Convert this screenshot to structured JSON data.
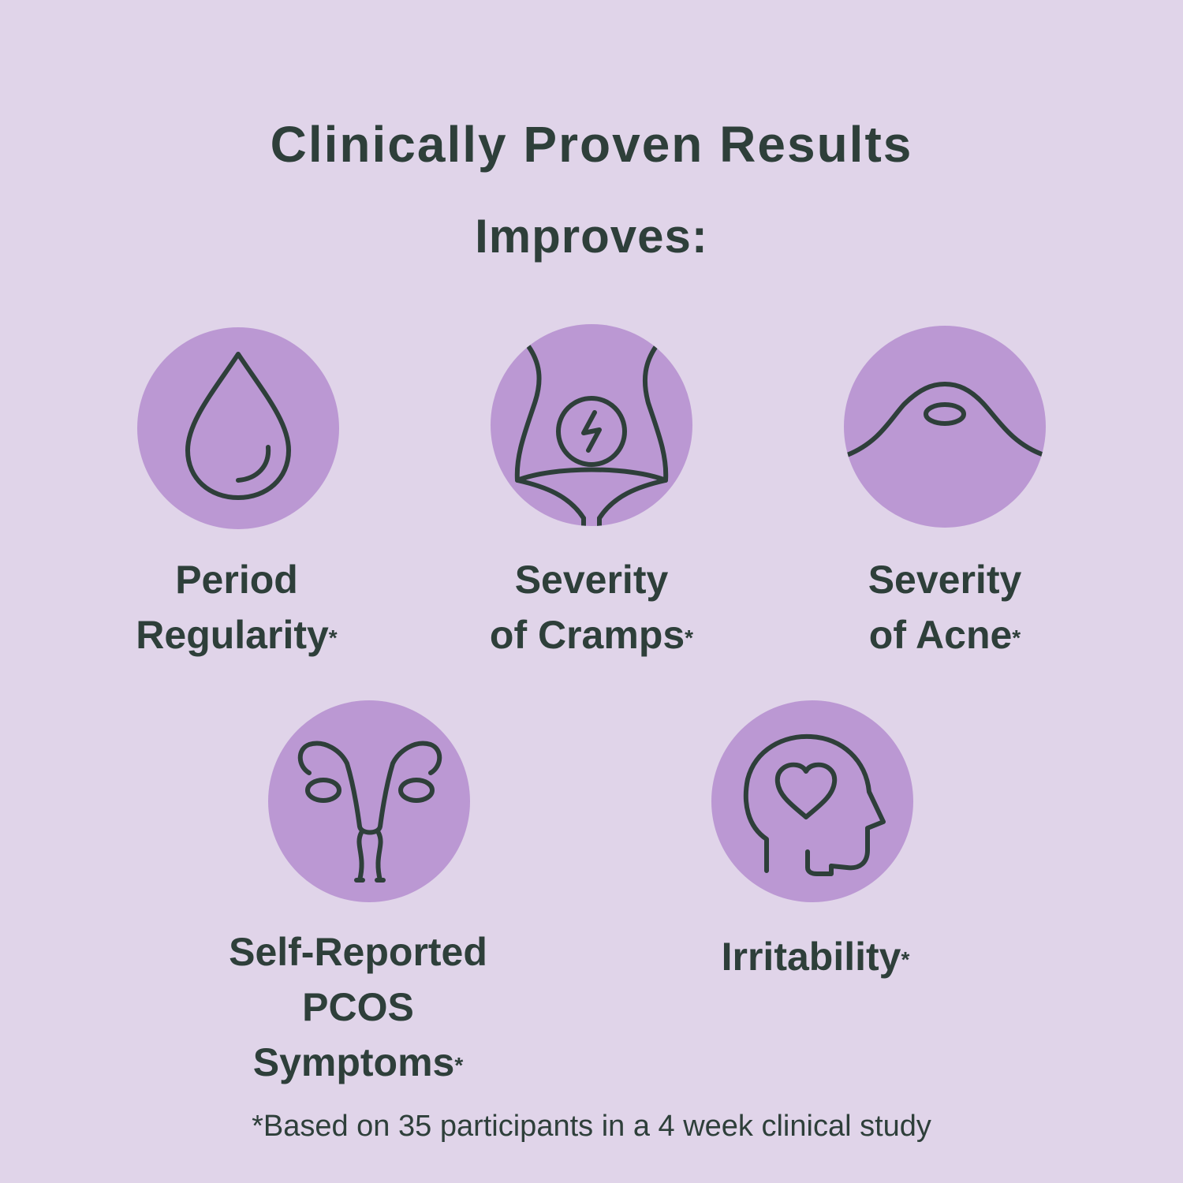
{
  "header": {
    "title": "Clinically Proven Results",
    "subtitle": "Improves:"
  },
  "benefits": [
    {
      "icon": "drop-icon",
      "line1": "Period",
      "line2": "Regularity",
      "mark": "*"
    },
    {
      "icon": "abdomen-cramp-icon",
      "line1": "Severity",
      "line2": "of Cramps",
      "mark": "*"
    },
    {
      "icon": "acne-icon",
      "line1": "Severity",
      "line2": "of Acne",
      "mark": "*"
    },
    {
      "icon": "uterus-icon",
      "line1": "Self-Reported",
      "line2": "PCOS Symptoms",
      "mark": "*"
    },
    {
      "icon": "head-heart-icon",
      "line1": "Irritability",
      "mark": "*"
    }
  ],
  "footnote": "*Based on 35 participants in a 4 week clinical study",
  "colors": {
    "background": "#e0d4e9",
    "circle": "#bb98d3",
    "text": "#2e3f3a"
  }
}
